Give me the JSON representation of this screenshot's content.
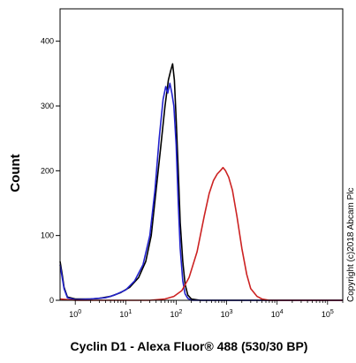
{
  "chart_data": {
    "type": "line",
    "xlabel": "Cyclin D1 - Alexa Fluor® 488 (530/30 BP)",
    "ylabel": "Count",
    "x_scale": "log",
    "xlim": [
      0.5,
      200000
    ],
    "ylim": [
      0,
      450
    ],
    "y_ticks": [
      {
        "value": 0,
        "label": "0"
      },
      {
        "value": 100,
        "label": "100"
      },
      {
        "value": 200,
        "label": "200"
      },
      {
        "value": 300,
        "label": "300"
      },
      {
        "value": 400,
        "label": "400"
      }
    ],
    "x_ticks": [
      {
        "value": 1,
        "base": "10",
        "exp": "0"
      },
      {
        "value": 10,
        "base": "10",
        "exp": "1"
      },
      {
        "value": 100,
        "base": "10",
        "exp": "2"
      },
      {
        "value": 1000,
        "base": "10",
        "exp": "3"
      },
      {
        "value": 10000,
        "base": "10",
        "exp": "4"
      },
      {
        "value": 100000,
        "base": "10",
        "exp": "5"
      }
    ],
    "annotation": "Copyright (c)2018 Abcam Plc",
    "series": [
      {
        "color": "#000000",
        "points": [
          [
            0.5,
            60
          ],
          [
            0.55,
            40
          ],
          [
            0.6,
            20
          ],
          [
            0.7,
            5
          ],
          [
            1,
            2
          ],
          [
            2,
            2
          ],
          [
            3,
            3
          ],
          [
            5,
            6
          ],
          [
            8,
            12
          ],
          [
            12,
            20
          ],
          [
            18,
            35
          ],
          [
            25,
            60
          ],
          [
            32,
            100
          ],
          [
            40,
            170
          ],
          [
            50,
            240
          ],
          [
            60,
            300
          ],
          [
            70,
            340
          ],
          [
            78,
            355
          ],
          [
            85,
            365
          ],
          [
            92,
            340
          ],
          [
            100,
            280
          ],
          [
            110,
            200
          ],
          [
            120,
            120
          ],
          [
            135,
            60
          ],
          [
            150,
            25
          ],
          [
            170,
            8
          ],
          [
            200,
            2
          ],
          [
            300,
            0
          ],
          [
            200000,
            0
          ]
        ]
      },
      {
        "color": "#2222cc",
        "points": [
          [
            0.5,
            55
          ],
          [
            0.55,
            35
          ],
          [
            0.6,
            18
          ],
          [
            0.7,
            4
          ],
          [
            1,
            1
          ],
          [
            2,
            2
          ],
          [
            4,
            4
          ],
          [
            6,
            8
          ],
          [
            10,
            16
          ],
          [
            15,
            30
          ],
          [
            22,
            55
          ],
          [
            30,
            100
          ],
          [
            38,
            170
          ],
          [
            46,
            250
          ],
          [
            55,
            310
          ],
          [
            62,
            330
          ],
          [
            68,
            320
          ],
          [
            75,
            335
          ],
          [
            82,
            320
          ],
          [
            90,
            300
          ],
          [
            100,
            240
          ],
          [
            110,
            150
          ],
          [
            120,
            80
          ],
          [
            135,
            30
          ],
          [
            150,
            10
          ],
          [
            170,
            3
          ],
          [
            200,
            0
          ],
          [
            200000,
            0
          ]
        ]
      },
      {
        "color": "#cc2222",
        "points": [
          [
            0.5,
            2
          ],
          [
            1,
            0
          ],
          [
            30,
            0
          ],
          [
            60,
            2
          ],
          [
            90,
            6
          ],
          [
            130,
            15
          ],
          [
            180,
            35
          ],
          [
            260,
            75
          ],
          [
            360,
            130
          ],
          [
            450,
            165
          ],
          [
            550,
            185
          ],
          [
            650,
            195
          ],
          [
            750,
            200
          ],
          [
            850,
            205
          ],
          [
            950,
            200
          ],
          [
            1100,
            190
          ],
          [
            1300,
            170
          ],
          [
            1600,
            130
          ],
          [
            2000,
            80
          ],
          [
            2500,
            40
          ],
          [
            3000,
            18
          ],
          [
            4000,
            6
          ],
          [
            5000,
            2
          ],
          [
            7000,
            0
          ],
          [
            200000,
            0
          ]
        ]
      }
    ]
  }
}
